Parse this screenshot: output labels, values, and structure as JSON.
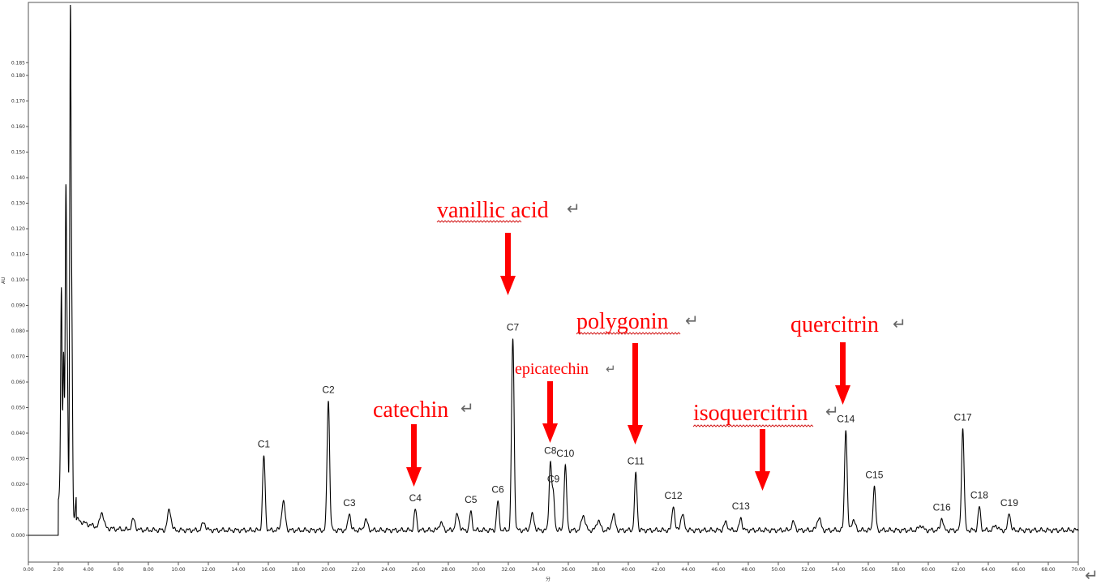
{
  "chart_data": {
    "type": "line",
    "xlabel": "分",
    "ylabel": "AU",
    "xlim": [
      0,
      70
    ],
    "ylim": [
      -0.018,
      0.188
    ],
    "x_ticks": [
      "0.00",
      "2.00",
      "4.00",
      "6.00",
      "8.00",
      "10.00",
      "12.00",
      "14.00",
      "16.00",
      "18.00",
      "20.00",
      "22.00",
      "24.00",
      "26.00",
      "28.00",
      "30.00",
      "32.00",
      "34.00",
      "36.00",
      "38.00",
      "40.00",
      "42.00",
      "44.00",
      "46.00",
      "48.00",
      "50.00",
      "52.00",
      "54.00",
      "56.00",
      "58.00",
      "60.00",
      "62.00",
      "64.00",
      "66.00",
      "68.00",
      "70.00"
    ],
    "y_ticks": [
      {
        "value": 0.0,
        "label": "0.000"
      },
      {
        "value": 0.01,
        "label": "0.010"
      },
      {
        "value": 0.02,
        "label": "0.020"
      },
      {
        "value": 0.03,
        "label": "0.030"
      },
      {
        "value": 0.04,
        "label": "0.040"
      },
      {
        "value": 0.05,
        "label": "0.050"
      },
      {
        "value": 0.06,
        "label": "0.060"
      },
      {
        "value": 0.07,
        "label": "0.070"
      },
      {
        "value": 0.08,
        "label": "0.080"
      },
      {
        "value": 0.09,
        "label": "0.090"
      },
      {
        "value": 0.1,
        "label": "0.100"
      },
      {
        "value": 0.11,
        "label": "0.110"
      },
      {
        "value": 0.12,
        "label": "0.120"
      },
      {
        "value": 0.13,
        "label": "0.130"
      },
      {
        "value": 0.14,
        "label": "0.140"
      },
      {
        "value": 0.15,
        "label": "0.150"
      },
      {
        "value": 0.16,
        "label": "0.160"
      },
      {
        "value": 0.17,
        "label": "0.170"
      },
      {
        "value": 0.18,
        "label": "0.180"
      },
      {
        "value": 0.185,
        "label": "0.185"
      }
    ],
    "peaks": [
      {
        "label": "C1",
        "x": 15.7,
        "y": 0.029
      },
      {
        "label": "C2",
        "x": 20.0,
        "y": 0.051
      },
      {
        "label": "C3",
        "x": 21.4,
        "y": 0.007
      },
      {
        "label": "C4",
        "x": 25.8,
        "y": 0.008
      },
      {
        "label": "C5",
        "x": 29.5,
        "y": 0.007
      },
      {
        "label": "C6",
        "x": 31.3,
        "y": 0.011
      },
      {
        "label": "C7",
        "x": 32.3,
        "y": 0.075
      },
      {
        "label": "C8",
        "x": 34.8,
        "y": 0.026
      },
      {
        "label": "C9",
        "x": 35.0,
        "y": 0.013
      },
      {
        "label": "C10",
        "x": 35.8,
        "y": 0.025
      },
      {
        "label": "C11",
        "x": 40.5,
        "y": 0.022
      },
      {
        "label": "C12",
        "x": 43.0,
        "y": 0.01
      },
      {
        "label": "C13",
        "x": 47.5,
        "y": 0.005
      },
      {
        "label": "C14",
        "x": 54.5,
        "y": 0.04
      },
      {
        "label": "C15",
        "x": 56.4,
        "y": 0.017
      },
      {
        "label": "C16",
        "x": 60.9,
        "y": 0.005
      },
      {
        "label": "C17",
        "x": 62.3,
        "y": 0.04
      },
      {
        "label": "C18",
        "x": 63.4,
        "y": 0.009
      },
      {
        "label": "C19",
        "x": 65.4,
        "y": 0.007
      }
    ],
    "early_peaks": [
      {
        "x": 2.2,
        "y": 0.076
      },
      {
        "x": 2.35,
        "y": 0.06
      },
      {
        "x": 2.5,
        "y": 0.113
      },
      {
        "x": 2.6,
        "y": 0.05
      },
      {
        "x": 2.8,
        "y": 0.188
      },
      {
        "x": 2.9,
        "y": 0.06
      }
    ],
    "minor_peaks": [
      {
        "x": 4.9,
        "y": 0.006
      },
      {
        "x": 7.0,
        "y": 0.004
      },
      {
        "x": 9.4,
        "y": 0.008
      },
      {
        "x": 11.7,
        "y": 0.003
      },
      {
        "x": 17.0,
        "y": 0.011
      },
      {
        "x": 22.5,
        "y": 0.004
      },
      {
        "x": 27.5,
        "y": 0.003
      },
      {
        "x": 28.6,
        "y": 0.006
      },
      {
        "x": 33.6,
        "y": 0.006
      },
      {
        "x": 37.0,
        "y": 0.006
      },
      {
        "x": 38.0,
        "y": 0.004
      },
      {
        "x": 39.0,
        "y": 0.006
      },
      {
        "x": 43.6,
        "y": 0.006
      },
      {
        "x": 46.5,
        "y": 0.003
      },
      {
        "x": 51.0,
        "y": 0.003
      },
      {
        "x": 52.7,
        "y": 0.005
      },
      {
        "x": 55.0,
        "y": 0.004
      },
      {
        "x": 59.5,
        "y": 0.002
      },
      {
        "x": 64.5,
        "y": 0.002
      }
    ],
    "annotations": [
      {
        "text": "vanillic acid",
        "points_to": "C7"
      },
      {
        "text": "catechin",
        "points_to": "C4"
      },
      {
        "text": "epicatechin",
        "points_to": "C8"
      },
      {
        "text": "polygonin",
        "points_to": "C11"
      },
      {
        "text": "isoquercitrin",
        "points_to": "C13"
      },
      {
        "text": "quercitrin",
        "points_to": "C14"
      }
    ],
    "return_mark": "↵",
    "line_color": "#000000",
    "annotation_color": "#ff0000"
  }
}
